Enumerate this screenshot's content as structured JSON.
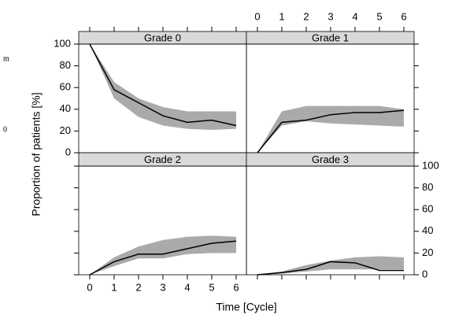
{
  "chart_data": [
    {
      "type": "line",
      "title": "Grade 0",
      "x": [
        0,
        1,
        2,
        3,
        4,
        5,
        6
      ],
      "values": [
        100,
        58,
        46,
        34,
        28,
        30,
        25
      ],
      "lower": [
        100,
        50,
        33,
        25,
        22,
        21,
        22
      ],
      "upper": [
        100,
        65,
        50,
        42,
        38,
        38,
        38
      ],
      "color": "#000000",
      "band_color": "#aaaaaa",
      "xlim": [
        -0.45,
        6.42
      ],
      "ylim": [
        0,
        100
      ],
      "xticks": [
        0,
        1,
        2,
        3,
        4,
        5,
        6
      ],
      "yticks": [
        0,
        20,
        40,
        60,
        80,
        100
      ]
    },
    {
      "type": "line",
      "title": "Grade 1",
      "x": [
        0,
        1,
        2,
        3,
        4,
        5,
        6
      ],
      "values": [
        0,
        28,
        30,
        35,
        37,
        37,
        39
      ],
      "lower": [
        0,
        25,
        29,
        27,
        26,
        25,
        24
      ],
      "upper": [
        0,
        38,
        43,
        43,
        43,
        43,
        40
      ],
      "color": "#000000",
      "band_color": "#aaaaaa",
      "xlim": [
        -0.45,
        6.42
      ],
      "ylim": [
        0,
        100
      ],
      "xticks": [
        0,
        1,
        2,
        3,
        4,
        5,
        6
      ],
      "yticks": [
        0,
        20,
        40,
        60,
        80,
        100
      ]
    },
    {
      "type": "line",
      "title": "Grade 2",
      "x": [
        0,
        1,
        2,
        3,
        4,
        5,
        6
      ],
      "values": [
        0,
        12,
        19,
        19,
        24,
        29,
        31
      ],
      "lower": [
        0,
        8,
        15,
        15,
        19,
        20,
        20
      ],
      "upper": [
        0,
        16,
        26,
        32,
        35,
        36,
        35
      ],
      "color": "#000000",
      "band_color": "#aaaaaa",
      "xlim": [
        -0.45,
        6.42
      ],
      "ylim": [
        0,
        100
      ],
      "xticks": [
        0,
        1,
        2,
        3,
        4,
        5,
        6
      ],
      "yticks": [
        0,
        20,
        40,
        60,
        80,
        100
      ]
    },
    {
      "type": "line",
      "title": "Grade 3",
      "x": [
        0,
        1,
        2,
        3,
        4,
        5,
        6
      ],
      "values": [
        0,
        2,
        5,
        12,
        11,
        4,
        4
      ],
      "lower": [
        0,
        1,
        3,
        5,
        5,
        5,
        5
      ],
      "upper": [
        0,
        3,
        9,
        13,
        16,
        17,
        16
      ],
      "color": "#000000",
      "band_color": "#aaaaaa",
      "xlim": [
        -0.45,
        6.42
      ],
      "ylim": [
        0,
        100
      ],
      "xticks": [
        0,
        1,
        2,
        3,
        4,
        5,
        6
      ],
      "yticks": [
        0,
        20,
        40,
        60,
        80,
        100
      ]
    }
  ],
  "x_label": "Time [Cycle]",
  "y_label": "Proportion of patients [%]",
  "fragments": [
    "m",
    "0"
  ]
}
